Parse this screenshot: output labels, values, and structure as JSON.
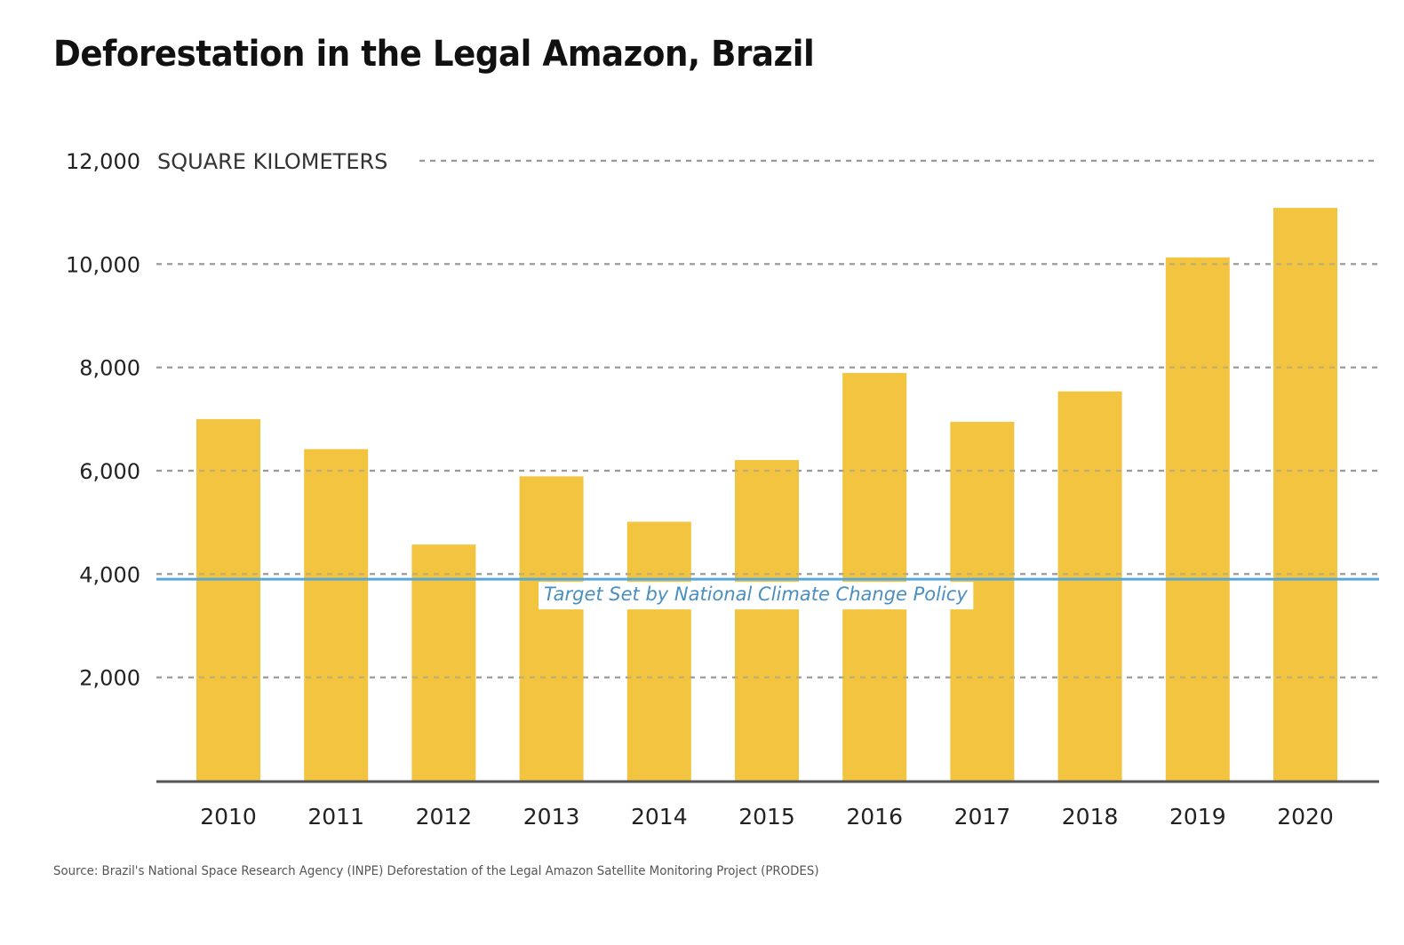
{
  "header": {
    "title": "Deforestation in the Legal Amazon, Brazil"
  },
  "footer": {
    "source": "Source: Brazil's National Space Research Agency (INPE) Deforestation of the Legal Amazon Satellite Monitoring Project (PRODES)"
  },
  "colors": {
    "bar": "#f2c43f",
    "target_line": "#5aa7d6",
    "grid": "#9a9a9a",
    "axis": "#555555"
  },
  "chart_data": {
    "type": "bar",
    "title": "Deforestation in the Legal Amazon, Brazil",
    "xlabel": "",
    "ylabel": "SQUARE KILOMETERS",
    "categories": [
      "2010",
      "2011",
      "2012",
      "2013",
      "2014",
      "2015",
      "2016",
      "2017",
      "2018",
      "2019",
      "2020"
    ],
    "values": [
      7000,
      6418,
      4571,
      5891,
      5012,
      6207,
      7893,
      6947,
      7536,
      10129,
      11088
    ],
    "ylim": [
      0,
      12000
    ],
    "yticks": [
      2000,
      4000,
      6000,
      8000,
      10000,
      12000
    ],
    "ytick_labels": [
      "2,000",
      "4,000",
      "6,000",
      "8,000",
      "10,000",
      "12,000"
    ],
    "grid": true,
    "grid_style": "dashed horizontal",
    "reference_line": {
      "value": 3900,
      "label": "Target Set by National Climate Change Policy"
    },
    "legend": "none"
  }
}
